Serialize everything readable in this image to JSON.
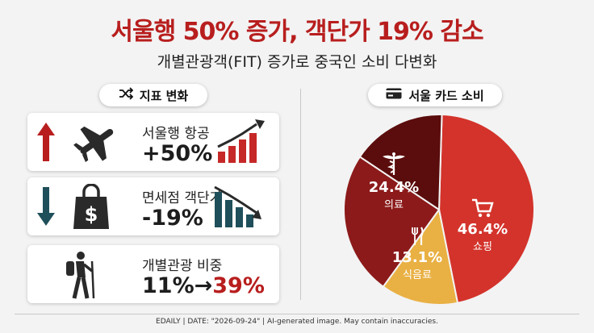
{
  "title": "서울행 50% 증가, 객단가 19% 감소",
  "subtitle": "개별관광객(FIT) 증가로 중국인 소비 다변화",
  "left_panel": {
    "header": "지표 변화",
    "header_icon": "shuffle-icon",
    "cards": [
      {
        "label": "서울행 항공",
        "value": "+50%",
        "direction": "up",
        "icon": "airplane-icon",
        "change_pct": 50
      },
      {
        "label": "면세점 객단가",
        "value": "-19%",
        "direction": "down",
        "icon": "shopping-bag-dollar-icon",
        "change_pct": -19
      },
      {
        "label": "개별관광 비중",
        "value_before": "11%",
        "value_arrow": "→",
        "value_after": "39%",
        "icon": "hiker-icon",
        "before_pct": 11,
        "after_pct": 39
      }
    ]
  },
  "right_panel": {
    "header": "서울 카드 소비",
    "header_icon": "credit-card-icon"
  },
  "chart_data": {
    "type": "pie",
    "title": "서울 카드 소비",
    "slices": [
      {
        "name": "쇼핑",
        "value": 46.4,
        "label": "46.4%",
        "color": "#d3332b",
        "icon": "shopping-cart-icon"
      },
      {
        "name": "식음료",
        "value": 13.1,
        "label": "13.1%",
        "color": "#e9b043",
        "icon": "fork-knife-icon"
      },
      {
        "name": "의료",
        "value": 24.4,
        "label": "24.4%",
        "color": "#8c1a1a",
        "icon": "caduceus-icon"
      },
      {
        "name": "",
        "value": 16.1,
        "label": "",
        "color": "#5b0c0c",
        "icon": ""
      }
    ]
  },
  "footer": "EDAILY  |  DATE: \"2026-09-24\"  |  AI-generated image. May contain inaccuracies.",
  "colors": {
    "accent_red": "#b81e1e",
    "dark_red": "#8c1a1a",
    "gold": "#e9b043",
    "teal": "#1f4f5a"
  }
}
